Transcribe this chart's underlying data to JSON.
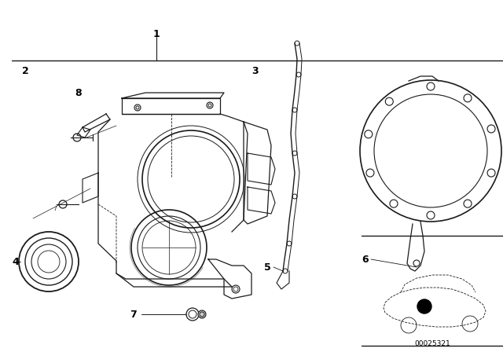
{
  "background_color": "#ffffff",
  "part_number": "00025321",
  "line_color": "#1a1a1a",
  "text_color": "#000000",
  "figsize": [
    6.4,
    4.48
  ],
  "dpi": 100,
  "xlim": [
    0,
    640
  ],
  "ylim": [
    0,
    448
  ]
}
